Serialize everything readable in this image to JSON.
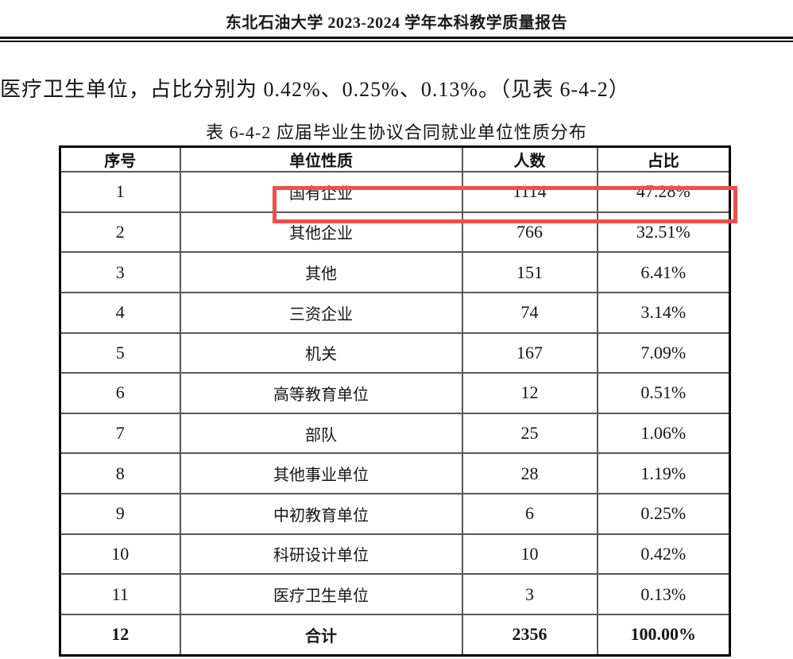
{
  "page": {
    "header_title": "东北石油大学 2023-2024 学年本科教学质量报告",
    "body_text": "医疗卫生单位，占比分别为 0.42%、0.25%、0.13%。（见表 6-4-2）",
    "table_title": "表 6-4-2 应届毕业生协议合同就业单位性质分布"
  },
  "table": {
    "columns": [
      "序号",
      "单位性质",
      "人数",
      "占比"
    ],
    "rows": [
      [
        "1",
        "国有企业",
        "1114",
        "47.28%"
      ],
      [
        "2",
        "其他企业",
        "766",
        "32.51%"
      ],
      [
        "3",
        "其他",
        "151",
        "6.41%"
      ],
      [
        "4",
        "三资企业",
        "74",
        "3.14%"
      ],
      [
        "5",
        "机关",
        "167",
        "7.09%"
      ],
      [
        "6",
        "高等教育单位",
        "12",
        "0.51%"
      ],
      [
        "7",
        "部队",
        "25",
        "1.06%"
      ],
      [
        "8",
        "其他事业单位",
        "28",
        "1.19%"
      ],
      [
        "9",
        "中初教育单位",
        "6",
        "0.25%"
      ],
      [
        "10",
        "科研设计单位",
        "10",
        "0.42%"
      ],
      [
        "11",
        "医疗卫生单位",
        "3",
        "0.13%"
      ],
      [
        "12",
        "合计",
        "2356",
        "100.00%"
      ]
    ],
    "total_row_index": 11,
    "highlight": {
      "row_index": 0,
      "color": "#f04f4a"
    }
  }
}
